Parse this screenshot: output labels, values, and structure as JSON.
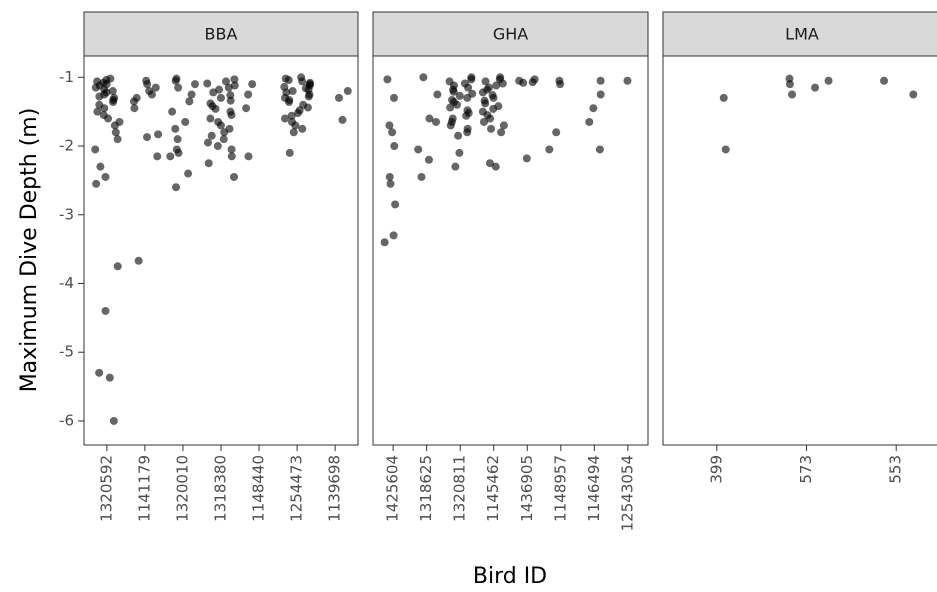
{
  "y_label": "Maximum Dive Depth (m)",
  "x_label": "Bird ID",
  "chart_data": [
    {
      "type": "strip",
      "title": "BBA",
      "ylim": [
        -6.35,
        -0.69
      ],
      "yticks": [
        -6,
        -5,
        -4,
        -3,
        -2,
        -1
      ],
      "grid": false,
      "color": "#000000",
      "categories": [
        "1320592",
        "1141179",
        "1320010",
        "1318380",
        "1148440",
        "1254473",
        "1139698"
      ],
      "values": [
        [
          -1.02,
          -1.04,
          -1.06,
          -1.08,
          -1.1,
          -1.12,
          -1.15,
          -1.18,
          -1.2,
          -1.22,
          -1.25,
          -1.28,
          -1.3,
          -1.33,
          -1.36,
          -1.4,
          -1.45,
          -1.5,
          -1.55,
          -1.6,
          -1.65,
          -1.7,
          -1.8,
          -1.9,
          -2.05,
          -2.3,
          -2.45,
          -2.55,
          -3.75,
          -4.4,
          -5.3,
          -5.37,
          -6.0
        ],
        [
          -1.05,
          -1.1,
          -1.15,
          -1.2,
          -1.25,
          -1.3,
          -1.35,
          -1.45,
          -1.83,
          -1.87,
          -2.15,
          -3.67
        ],
        [
          -1.02,
          -1.05,
          -1.1,
          -1.15,
          -1.25,
          -1.35,
          -1.5,
          -1.65,
          -1.75,
          -1.9,
          -2.05,
          -2.1,
          -2.15,
          -2.4,
          -2.6
        ],
        [
          -1.03,
          -1.06,
          -1.09,
          -1.12,
          -1.15,
          -1.18,
          -1.22,
          -1.26,
          -1.3,
          -1.34,
          -1.38,
          -1.42,
          -1.46,
          -1.5,
          -1.55,
          -1.6,
          -1.65,
          -1.7,
          -1.75,
          -1.8,
          -1.85,
          -1.9,
          -1.95,
          -2.0,
          -2.05,
          -2.15,
          -2.25,
          -2.45
        ],
        [
          -1.1,
          -1.25,
          -1.45,
          -2.15
        ],
        [
          -1.0,
          -1.02,
          -1.04,
          -1.06,
          -1.08,
          -1.1,
          -1.12,
          -1.14,
          -1.16,
          -1.18,
          -1.2,
          -1.22,
          -1.25,
          -1.28,
          -1.3,
          -1.33,
          -1.36,
          -1.4,
          -1.44,
          -1.48,
          -1.52,
          -1.56,
          -1.6,
          -1.65,
          -1.7,
          -1.75,
          -1.8,
          -2.1
        ],
        [
          -1.2,
          -1.3,
          -1.62
        ]
      ]
    },
    {
      "type": "strip",
      "title": "GHA",
      "grid": false,
      "color": "#000000",
      "categories": [
        "1425604",
        "1318625",
        "1320811",
        "1145462",
        "1436905",
        "1148957",
        "1146494",
        "12543054"
      ],
      "values": [
        [
          -1.03,
          -1.3,
          -1.7,
          -1.8,
          -2.0,
          -2.45,
          -2.55,
          -2.85,
          -3.3,
          -3.4
        ],
        [
          -1.0,
          -1.25,
          -1.6,
          -1.65,
          -2.05,
          -2.2,
          -2.45
        ],
        [
          -1.0,
          -1.03,
          -1.06,
          -1.09,
          -1.12,
          -1.15,
          -1.18,
          -1.21,
          -1.24,
          -1.27,
          -1.3,
          -1.33,
          -1.36,
          -1.4,
          -1.44,
          -1.48,
          -1.52,
          -1.56,
          -1.6,
          -1.65,
          -1.7,
          -1.75,
          -1.8,
          -1.85,
          -2.1,
          -2.3
        ],
        [
          -1.0,
          -1.03,
          -1.06,
          -1.09,
          -1.12,
          -1.15,
          -1.18,
          -1.22,
          -1.26,
          -1.3,
          -1.34,
          -1.38,
          -1.42,
          -1.46,
          -1.5,
          -1.55,
          -1.6,
          -1.65,
          -1.7,
          -1.75,
          -1.8,
          -2.25,
          -2.3
        ],
        [
          -1.03,
          -1.05,
          -1.07,
          -1.08,
          -2.18
        ],
        [
          -1.05,
          -1.1,
          -1.8,
          -2.05
        ],
        [
          -1.05,
          -1.25,
          -1.45,
          -1.65,
          -2.05
        ],
        [
          -1.05
        ]
      ]
    },
    {
      "type": "strip",
      "title": "LMA",
      "grid": false,
      "color": "#000000",
      "categories": [
        "399",
        "573",
        "553"
      ],
      "values": [
        [
          -1.3,
          -2.05
        ],
        [
          -1.02,
          -1.05,
          -1.1,
          -1.15,
          -1.25
        ],
        [
          -1.05,
          -1.25
        ]
      ]
    }
  ]
}
